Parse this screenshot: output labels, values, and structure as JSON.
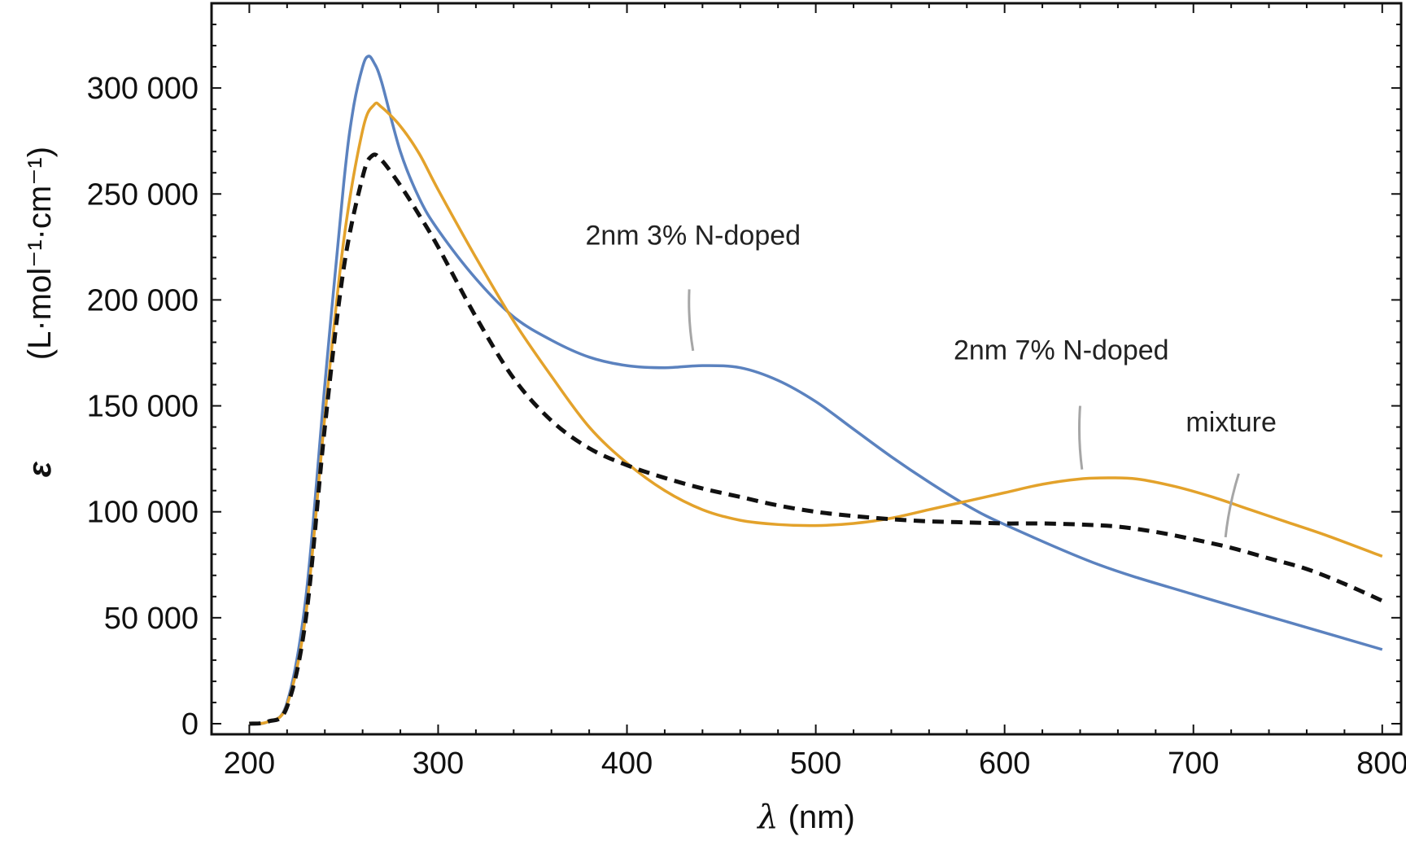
{
  "chart_data": {
    "type": "line",
    "title": "",
    "xlabel": "λ (nm)",
    "ylabel": "(L·mol⁻¹·cm⁻¹)",
    "ylabel_symbol": "ε",
    "xlim": [
      180,
      810
    ],
    "ylim": [
      -5000,
      340000
    ],
    "x_ticks": [
      200,
      300,
      400,
      500,
      600,
      700,
      800
    ],
    "x_tick_labels": [
      "200",
      "300",
      "400",
      "500",
      "600",
      "700",
      "800"
    ],
    "y_ticks": [
      0,
      50000,
      100000,
      150000,
      200000,
      250000,
      300000
    ],
    "y_tick_labels": [
      "0",
      "50 000",
      "100 000",
      "150 000",
      "200 000",
      "250 000",
      "300 000"
    ],
    "grid": false,
    "series": [
      {
        "name": "2nm 3% N-doped",
        "color": "#5b82bf",
        "style": "solid",
        "x": [
          200,
          210,
          220,
          230,
          240,
          250,
          255,
          260,
          263,
          266,
          270,
          280,
          290,
          300,
          320,
          340,
          360,
          380,
          400,
          420,
          440,
          460,
          480,
          500,
          520,
          540,
          560,
          580,
          600,
          650,
          700,
          750,
          800
        ],
        "values": [
          0,
          1000,
          10000,
          60000,
          160000,
          255000,
          290000,
          310000,
          315000,
          312000,
          303000,
          270000,
          248000,
          233000,
          210000,
          192000,
          181000,
          173000,
          169000,
          168000,
          169000,
          168000,
          162000,
          152000,
          139000,
          126000,
          114000,
          103000,
          94000,
          75000,
          61000,
          48000,
          35000
        ]
      },
      {
        "name": "2nm 7% N-doped",
        "color": "#e3a22b",
        "style": "solid",
        "x": [
          200,
          210,
          220,
          230,
          240,
          250,
          260,
          266,
          270,
          280,
          290,
          300,
          320,
          340,
          360,
          380,
          400,
          420,
          440,
          460,
          480,
          500,
          520,
          540,
          560,
          580,
          600,
          620,
          640,
          655,
          670,
          690,
          710,
          730,
          750,
          770,
          800
        ],
        "values": [
          0,
          1000,
          9000,
          52000,
          145000,
          228000,
          280000,
          292000,
          291000,
          282000,
          269000,
          252000,
          220000,
          190000,
          164000,
          140000,
          123000,
          110000,
          101000,
          96000,
          94000,
          93500,
          94500,
          97000,
          101000,
          105000,
          109000,
          113000,
          115500,
          116000,
          115500,
          112000,
          107000,
          101000,
          95000,
          89000,
          79000
        ]
      },
      {
        "name": "mixture",
        "color": "#111111",
        "style": "dashed",
        "x": [
          200,
          210,
          220,
          230,
          240,
          250,
          260,
          265,
          270,
          280,
          290,
          300,
          320,
          340,
          360,
          380,
          400,
          420,
          440,
          460,
          480,
          500,
          520,
          540,
          560,
          580,
          600,
          620,
          640,
          660,
          680,
          700,
          720,
          740,
          760,
          780,
          800
        ],
        "values": [
          0,
          1000,
          8000,
          50000,
          140000,
          215000,
          258000,
          268000,
          266000,
          254000,
          240000,
          225000,
          192000,
          163000,
          143000,
          130000,
          122000,
          116000,
          111000,
          107000,
          103000,
          100000,
          98000,
          96500,
          95500,
          95000,
          94500,
          94500,
          94000,
          93000,
          90500,
          87000,
          83000,
          78000,
          73000,
          66000,
          58000
        ]
      }
    ],
    "annotations": [
      {
        "text": "2nm 3% N-doped",
        "x": 435,
        "y": 226000,
        "leader_from": [
          433,
          205000
        ],
        "leader_to": [
          435,
          176000
        ]
      },
      {
        "text": "2nm 7% N-doped",
        "x": 630,
        "y": 172000,
        "leader_from": [
          640,
          150000
        ],
        "leader_to": [
          641,
          120000
        ]
      },
      {
        "text": "mixture",
        "x": 720,
        "y": 138000,
        "leader_from": [
          724,
          118000
        ],
        "leader_to": [
          717,
          88000
        ]
      }
    ]
  }
}
